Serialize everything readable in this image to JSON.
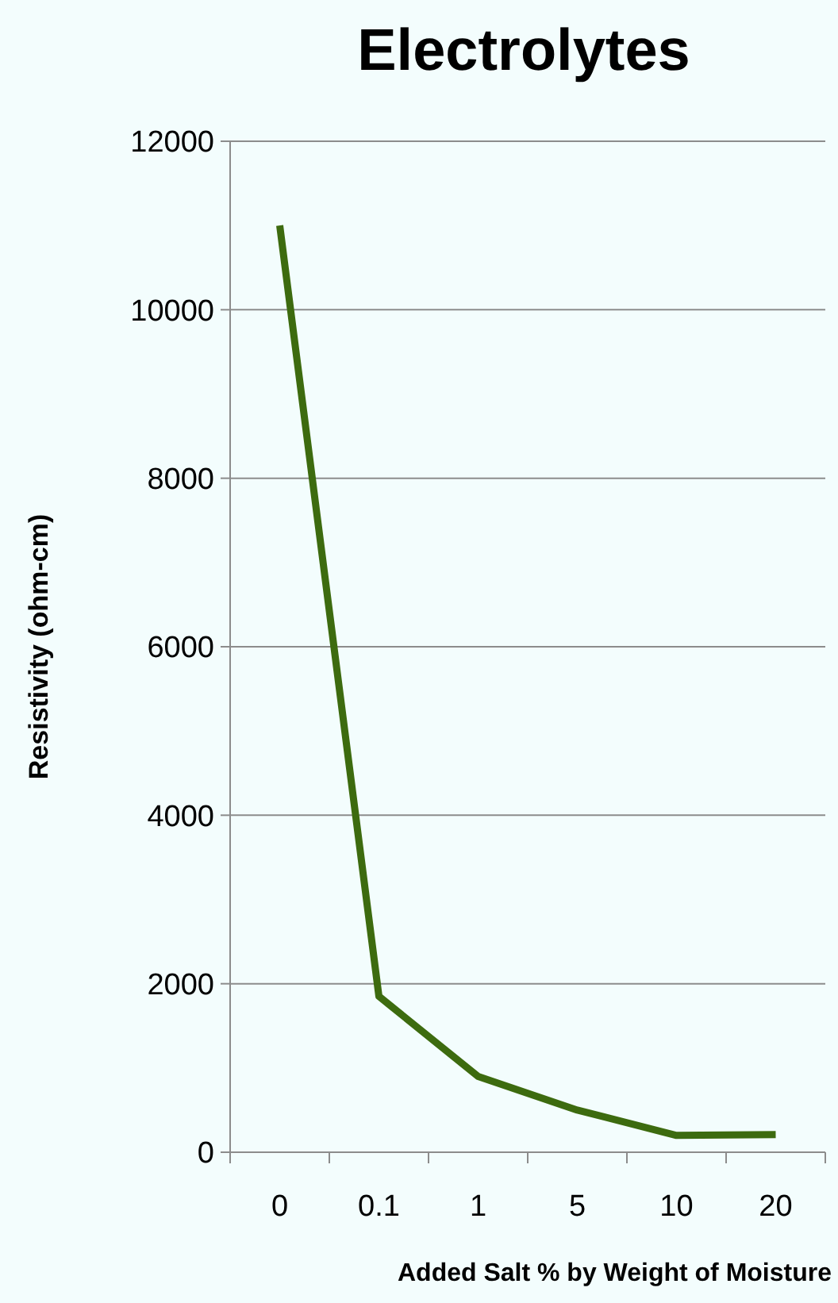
{
  "chart_data": {
    "type": "line",
    "title": "Electrolytes",
    "xlabel": "Added Salt % by Weight of Moisture",
    "ylabel": "Resistivity (ohm-cm)",
    "categories": [
      "0",
      "0.1",
      "1",
      "5",
      "10",
      "20"
    ],
    "series": [
      {
        "color": "#3d6b0f",
        "values": [
          11000,
          1850,
          900,
          500,
          200,
          210
        ]
      }
    ],
    "ylim": [
      0,
      12000
    ],
    "yticks": [
      0,
      2000,
      4000,
      6000,
      8000,
      10000,
      12000
    ],
    "grid": "y",
    "marker": "none",
    "line_style": "solid"
  }
}
